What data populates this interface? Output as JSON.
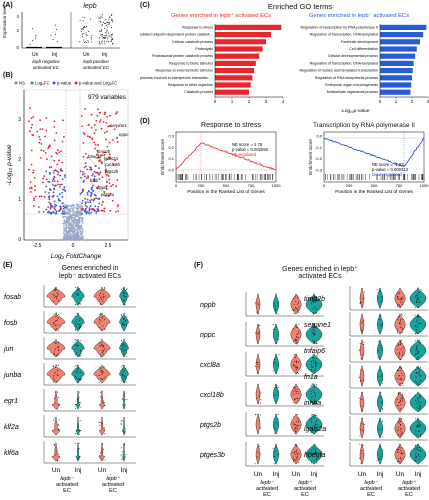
{
  "panel_a": {
    "label": "(A)",
    "gene": "lepb",
    "ylabel": "Expression level",
    "yticks": [
      "4",
      "2",
      "0"
    ],
    "xticks": [
      "Un",
      "Inj",
      "Un",
      "Inj"
    ],
    "group1": "lepb negative\nactivated EC",
    "group2": "lepb positive\nactivated EC"
  },
  "panel_b": {
    "label": "(B)",
    "legend": [
      "NS",
      "Log₂FC",
      "p-value",
      "p-value and Log₂FC"
    ],
    "variables": "979 variables",
    "ylabel": "-Log₁₀ p-value",
    "xlabel": "Log₂ FoldChange",
    "yticks": [
      "3",
      "2",
      "1",
      "0"
    ],
    "xticks": [
      "-2.5",
      "0",
      "2.5"
    ],
    "genes": [
      "serpine1",
      "nppc",
      "timp2b",
      "lgals2a",
      "cxcl18b",
      "ptgs2b",
      "hbegfa",
      "fosb",
      "nppb",
      "ptgs2a"
    ]
  },
  "panel_c": {
    "label": "(C)",
    "header": "Enriched GO terms",
    "left_title": "Genes enriched in lepb⁺ activated ECs",
    "right_title": "Genes enriched in lepb⁻ activated ECs",
    "xlabel": "-Log₁₀p-value",
    "left_terms": [
      "Response to stress",
      "Proteasome-mediated ubiquitin-dependent protein catabolic process",
      "Cellular catabolic process",
      "Proteolysis",
      "Proteasomal protein catabolic process",
      "Response to biotic stimulus",
      "Response to external biotic stimulus",
      "Biological process involved in interspecies interaction between organisms",
      "Response to other organism",
      "Catabolic process"
    ],
    "left_values": [
      3.9,
      3.3,
      3.0,
      2.8,
      2.6,
      2.4,
      2.3,
      2.2,
      2.1,
      2.0
    ],
    "left_xticks": [
      "0",
      "1",
      "2",
      "3",
      "4"
    ],
    "right_terms": [
      "Regulation of transcription by RNA polymerase II",
      "Regulation of transcription, DNA-templated",
      "Forebrain development",
      "Cell differentiation",
      "Cellular developmental process",
      "Regulation of transcription, DNA-templated",
      "Regulation of nucleic acid-templated transcription",
      "Regulation of RNA biosynthetic process",
      "Embryonic organ morphogenesis",
      "Multicellular organismal process"
    ],
    "right_values": [
      2.9,
      2.7,
      2.5,
      2.3,
      2.2,
      2.1,
      2.05,
      2.0,
      1.95,
      1.9
    ],
    "right_xticks": [
      "0",
      "1",
      "2",
      "3"
    ]
  },
  "panel_d": {
    "label": "(D)",
    "left_title": "Response to stress",
    "left_stats": [
      "NE score = 1.76",
      "p-value = 0.002556",
      "Up-regulated"
    ],
    "right_title": "Transcription by RNA polymerase II",
    "right_stats": [
      "NE score = -1.93",
      "p-value = 0.000313",
      "Down-regulated"
    ],
    "ylabel": "Enrichment score",
    "xlabel": "Position in the Ranked List of Genes",
    "left_yticks": [
      "0.3",
      "0.2",
      "0.1",
      "0.0"
    ],
    "right_yticks": [
      "0.0",
      "-0.1",
      "-0.2",
      "-0.3"
    ],
    "xticks": [
      "0",
      "250",
      "500",
      "750",
      "1000"
    ],
    "colors": {
      "up": "#e8262d",
      "down": "#1f3fd6"
    }
  },
  "panel_e": {
    "label": "(E)",
    "title": "Genes enriched in lepb⁻ activated ECs",
    "genes": [
      "fosab",
      "fosb",
      "jun",
      "junba",
      "egr1",
      "klf2a",
      "klf6a"
    ],
    "xticks": [
      "Un",
      "Inj",
      "Un",
      "Inj"
    ],
    "group1": "lepb⁻ activated EC",
    "group2": "lepb⁺ activated EC"
  },
  "panel_f": {
    "label": "(F)",
    "title": "Genes enriched in lepb⁺ activated ECs",
    "genes_left": [
      "nppb",
      "nppc",
      "cxcl8a",
      "cxcl18b",
      "ptgs2b",
      "ptges3b"
    ],
    "genes_right": [
      "timp2b",
      "serpine1",
      "tnfaip6",
      "fn1a",
      "inhba",
      "lgals2a",
      "hbegfa"
    ],
    "xticks": [
      "Un",
      "Inj",
      "Un",
      "Inj"
    ],
    "group1": "lepb⁻ activated EC",
    "group2": "lepb⁺ activated EC"
  },
  "colors": {
    "salmon": "#f08072",
    "teal": "#1aa39a",
    "red": "#e8262d",
    "blue": "#2a5bd7",
    "grey": "#888888"
  }
}
